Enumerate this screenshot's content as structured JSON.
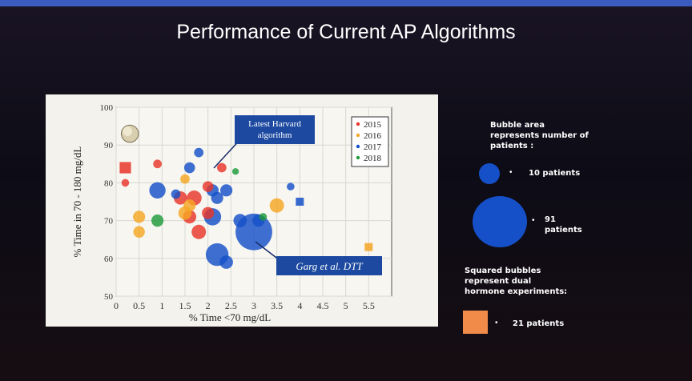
{
  "slide": {
    "title": "Performance of Current AP Algorithms"
  },
  "legend_notes": {
    "bubble_area": "Bubble area represents number of patients :",
    "small_bubble_label": "10 patients",
    "large_bubble_label": "91 patients",
    "squared_note": "Squared bubbles represent dual hormone experiments:",
    "square_label": "21 patients"
  },
  "colors": {
    "2015": "#e8352a",
    "2016": "#f5a623",
    "2017": "#1550c8",
    "2018": "#1f9a3a"
  },
  "chart_data": {
    "type": "scatter",
    "xlabel": "% Time <70 mg/dL",
    "ylabel": "% Time in 70 - 180 mg/dL",
    "xlim": [
      0,
      6
    ],
    "ylim": [
      50,
      100
    ],
    "xticks": [
      "0",
      "0.5",
      "1",
      "1.5",
      "2",
      "2.5",
      "3",
      "3.5",
      "4",
      "4.5",
      "5",
      "5.5"
    ],
    "xtick_values": [
      0,
      0.5,
      1,
      1.5,
      2,
      2.5,
      3,
      3.5,
      4,
      4.5,
      5,
      5.5
    ],
    "yticks": [
      "50",
      "60",
      "70",
      "80",
      "90",
      "100"
    ],
    "ytick_values": [
      50,
      60,
      70,
      80,
      90,
      100
    ],
    "grid": true,
    "legend_position": "top-right",
    "legend": [
      "2015",
      "2016",
      "2017",
      "2018"
    ],
    "annotations": [
      {
        "text": "Latest Harvard algorithm",
        "x": 2.2,
        "y": 88
      },
      {
        "text": "Garg et al. DTT",
        "x": 3.0,
        "y": 68
      }
    ],
    "points": [
      {
        "x": 0.3,
        "y": 93,
        "patients": 20,
        "year": "other",
        "shape": "circle"
      },
      {
        "x": 0.2,
        "y": 84,
        "patients": 12,
        "year": "2015",
        "shape": "square"
      },
      {
        "x": 0.2,
        "y": 80,
        "patients": 4,
        "year": "2015",
        "shape": "circle"
      },
      {
        "x": 0.9,
        "y": 85,
        "patients": 5,
        "year": "2015",
        "shape": "circle"
      },
      {
        "x": 2.0,
        "y": 79,
        "patients": 8,
        "year": "2015",
        "shape": "circle"
      },
      {
        "x": 1.4,
        "y": 76,
        "patients": 12,
        "year": "2015",
        "shape": "circle"
      },
      {
        "x": 1.7,
        "y": 76,
        "patients": 15,
        "year": "2015",
        "shape": "circle"
      },
      {
        "x": 1.6,
        "y": 71,
        "patients": 12,
        "year": "2015",
        "shape": "circle"
      },
      {
        "x": 1.8,
        "y": 67,
        "patients": 14,
        "year": "2015",
        "shape": "circle"
      },
      {
        "x": 2.3,
        "y": 84,
        "patients": 6,
        "year": "2015",
        "shape": "circle"
      },
      {
        "x": 2.0,
        "y": 72,
        "patients": 10,
        "year": "2015",
        "shape": "circle"
      },
      {
        "x": 0.5,
        "y": 71,
        "patients": 10,
        "year": "2016",
        "shape": "circle"
      },
      {
        "x": 0.5,
        "y": 67,
        "patients": 9,
        "year": "2016",
        "shape": "circle"
      },
      {
        "x": 1.5,
        "y": 81,
        "patients": 6,
        "year": "2016",
        "shape": "circle"
      },
      {
        "x": 1.5,
        "y": 72,
        "patients": 12,
        "year": "2016",
        "shape": "circle"
      },
      {
        "x": 1.6,
        "y": 74,
        "patients": 10,
        "year": "2016",
        "shape": "circle"
      },
      {
        "x": 3.5,
        "y": 74,
        "patients": 14,
        "year": "2016",
        "shape": "circle"
      },
      {
        "x": 5.5,
        "y": 63,
        "patients": 6,
        "year": "2016",
        "shape": "square"
      },
      {
        "x": 1.8,
        "y": 88,
        "patients": 6,
        "year": "2017",
        "shape": "circle"
      },
      {
        "x": 1.6,
        "y": 84,
        "patients": 8,
        "year": "2017",
        "shape": "circle"
      },
      {
        "x": 0.9,
        "y": 78,
        "patients": 18,
        "year": "2017",
        "shape": "circle"
      },
      {
        "x": 1.3,
        "y": 77,
        "patients": 6,
        "year": "2017",
        "shape": "circle"
      },
      {
        "x": 2.1,
        "y": 78,
        "patients": 10,
        "year": "2017",
        "shape": "circle"
      },
      {
        "x": 2.4,
        "y": 78,
        "patients": 10,
        "year": "2017",
        "shape": "circle"
      },
      {
        "x": 2.1,
        "y": 71,
        "patients": 20,
        "year": "2017",
        "shape": "circle"
      },
      {
        "x": 2.2,
        "y": 76,
        "patients": 10,
        "year": "2017",
        "shape": "circle"
      },
      {
        "x": 2.7,
        "y": 70,
        "patients": 12,
        "year": "2017",
        "shape": "circle"
      },
      {
        "x": 3.0,
        "y": 67,
        "patients": 91,
        "year": "2017",
        "shape": "circle"
      },
      {
        "x": 3.1,
        "y": 70,
        "patients": 10,
        "year": "2017",
        "shape": "circle"
      },
      {
        "x": 2.2,
        "y": 61,
        "patients": 35,
        "year": "2017",
        "shape": "circle"
      },
      {
        "x": 2.4,
        "y": 59,
        "patients": 12,
        "year": "2017",
        "shape": "circle"
      },
      {
        "x": 3.8,
        "y": 79,
        "patients": 4,
        "year": "2017",
        "shape": "circle"
      },
      {
        "x": 4.0,
        "y": 75,
        "patients": 6,
        "year": "2017",
        "shape": "square"
      },
      {
        "x": 0.9,
        "y": 70,
        "patients": 10,
        "year": "2018",
        "shape": "circle"
      },
      {
        "x": 2.6,
        "y": 83,
        "patients": 3,
        "year": "2018",
        "shape": "circle"
      },
      {
        "x": 3.2,
        "y": 71,
        "patients": 4,
        "year": "2018",
        "shape": "circle"
      }
    ]
  }
}
